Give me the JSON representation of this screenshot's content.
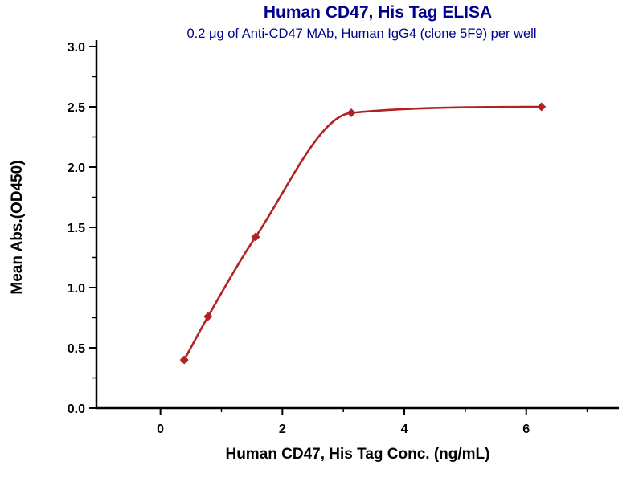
{
  "chart_data": {
    "type": "scatter",
    "title": "Human CD47, His Tag ELISA",
    "subtitle": "0.2 μg of Anti-CD47 MAb, Human IgG4 (clone 5F9) per well",
    "xlabel": "Human CD47, His Tag Conc. (ng/mL)",
    "ylabel": "Mean Abs.(OD450)",
    "xlim": [
      -1.05,
      7.52
    ],
    "ylim": [
      0.0,
      3.0
    ],
    "x_major_ticks": [
      0,
      2,
      4,
      6
    ],
    "x_tick_labels": [
      "0",
      "2",
      "4",
      "6"
    ],
    "x_minor_ticks": [
      1,
      3,
      5,
      7
    ],
    "y_major_ticks": [
      0.0,
      0.5,
      1.0,
      1.5,
      2.0,
      2.5,
      3.0
    ],
    "y_tick_labels": [
      "0.0",
      "0.5",
      "1.0",
      "1.5",
      "2.0",
      "2.5",
      "3.0"
    ],
    "y_minor_ticks": [
      0.25,
      0.75,
      1.25,
      1.75,
      2.25,
      2.75
    ],
    "series": [
      {
        "name": "Anti-CD47 MAb, Human IgG4 (clone 5F9)",
        "x": [
          0.39,
          0.78,
          1.56,
          3.13,
          6.25
        ],
        "y": [
          0.4,
          0.76,
          1.42,
          2.45,
          2.5
        ]
      }
    ],
    "marker": "diamond",
    "curve": "4PL sigmoidal fit",
    "grid": false,
    "legend": "none",
    "colors": {
      "title": "#00008B",
      "subtitle": "#00008B",
      "series": "#B22222",
      "axis": "#000000"
    }
  }
}
